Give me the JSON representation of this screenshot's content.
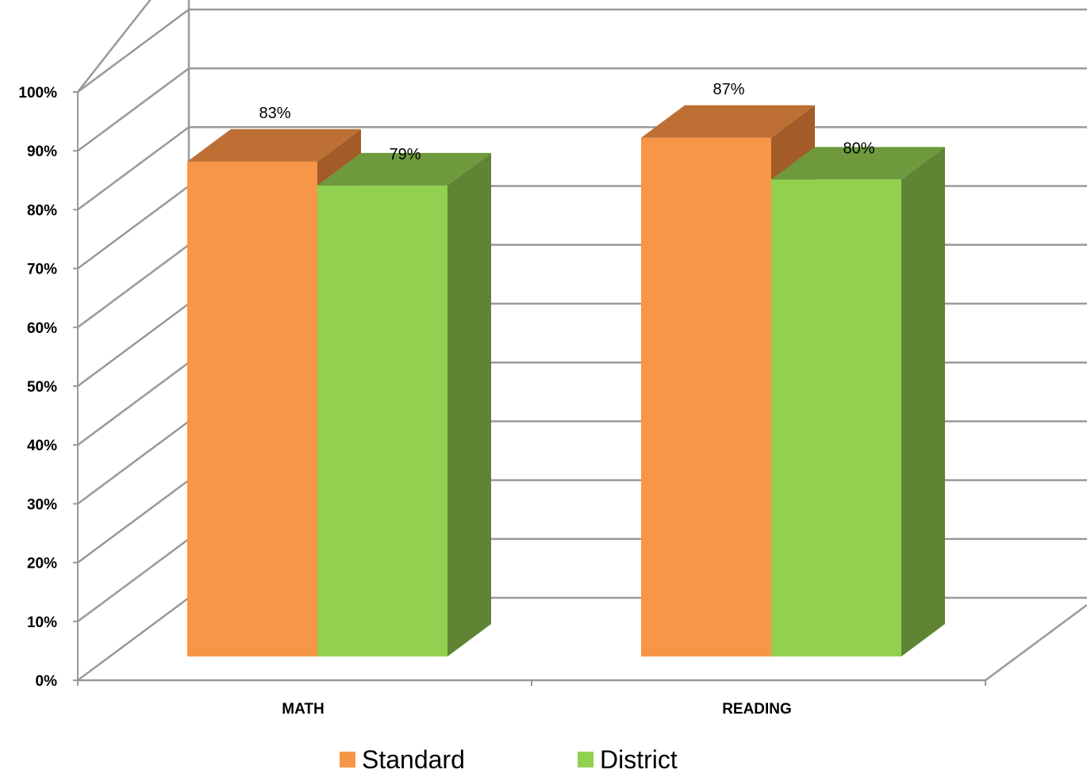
{
  "chart_data": {
    "type": "bar",
    "style": "3d-clustered-column",
    "categories": [
      "MATH",
      "READING"
    ],
    "series": [
      {
        "name": "Standard",
        "values": [
          83,
          87
        ],
        "labels": [
          "83%",
          "87%"
        ],
        "color": "#F79646",
        "top_color": "#BE6F33",
        "side_color": "#A35B28"
      },
      {
        "name": "District",
        "values": [
          79,
          80
        ],
        "labels": [
          "79%",
          "80%"
        ],
        "color": "#92D050",
        "top_color": "#6E9A3D",
        "side_color": "#5F8534"
      }
    ],
    "y_ticks": [
      "0%",
      "10%",
      "20%",
      "30%",
      "40%",
      "50%",
      "60%",
      "70%",
      "80%",
      "90%",
      "100%"
    ],
    "ylim": [
      0,
      100
    ],
    "grid": true,
    "grid_color": "#999999",
    "legend_position": "bottom"
  }
}
